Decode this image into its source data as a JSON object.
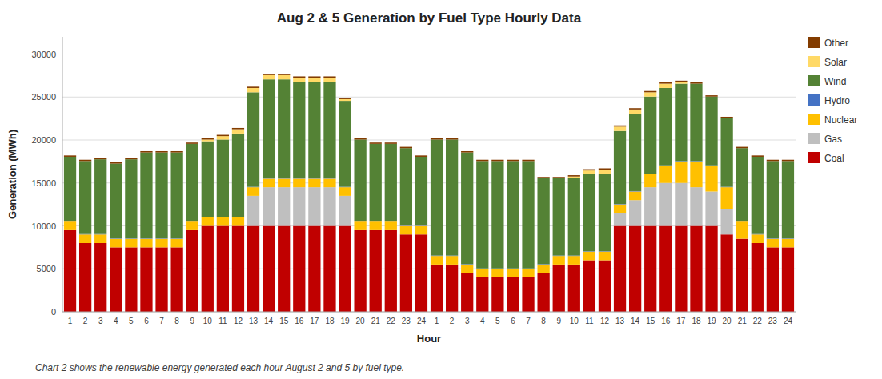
{
  "chart_data": {
    "type": "bar",
    "stacked": true,
    "title": "Aug 2 & 5 Generation by Fuel Type Hourly Data",
    "x_label": "Hour",
    "y_label": "Generation (MWh)",
    "caption": "Chart 2 shows the renewable energy generated each hour August 2 and 5 by fuel type.",
    "categories": [
      "1",
      "2",
      "3",
      "4",
      "5",
      "6",
      "7",
      "8",
      "9",
      "10",
      "11",
      "12",
      "13",
      "14",
      "15",
      "16",
      "17",
      "18",
      "19",
      "20",
      "21",
      "22",
      "23",
      "24",
      "1",
      "2",
      "3",
      "4",
      "5",
      "6",
      "7",
      "8",
      "9",
      "10",
      "11",
      "12",
      "13",
      "14",
      "15",
      "16",
      "17",
      "18",
      "19",
      "20",
      "21",
      "22",
      "23",
      "24"
    ],
    "series": [
      {
        "name": "Coal",
        "color": "#C00000",
        "values": [
          9500,
          8000,
          8000,
          7500,
          7500,
          7500,
          7500,
          7500,
          9500,
          10000,
          10000,
          10000,
          10000,
          10000,
          10000,
          10000,
          10000,
          10000,
          10000,
          9500,
          9500,
          9500,
          9000,
          9000,
          5500,
          5500,
          4500,
          4000,
          4000,
          4000,
          4000,
          4500,
          5500,
          5500,
          6000,
          6000,
          10000,
          10000,
          10000,
          10000,
          10000,
          10000,
          10000,
          9000,
          8500,
          8000,
          7500,
          7500
        ]
      },
      {
        "name": "Gas",
        "color": "#BFBFBF",
        "values": [
          0,
          0,
          0,
          0,
          0,
          0,
          0,
          0,
          0,
          0,
          0,
          0,
          3500,
          4500,
          4500,
          4500,
          4500,
          4500,
          3500,
          0,
          0,
          0,
          0,
          0,
          0,
          0,
          0,
          0,
          0,
          0,
          0,
          0,
          0,
          0,
          0,
          0,
          1500,
          3000,
          4500,
          5000,
          5000,
          4500,
          4000,
          3000,
          0,
          0,
          0,
          0
        ]
      },
      {
        "name": "Nuclear",
        "color": "#FFC000",
        "values": [
          1000,
          1000,
          1000,
          1000,
          1000,
          1000,
          1000,
          1000,
          1000,
          1000,
          1000,
          1000,
          1000,
          1000,
          1000,
          1000,
          1000,
          1000,
          1000,
          1000,
          1000,
          1000,
          1000,
          1000,
          1000,
          1000,
          1000,
          1000,
          1000,
          1000,
          1000,
          1000,
          1000,
          1000,
          1000,
          1000,
          1000,
          1000,
          1500,
          2000,
          2500,
          3000,
          3000,
          2500,
          2000,
          1000,
          1000,
          1000
        ]
      },
      {
        "name": "Hydro",
        "color": "#4472C4",
        "values": [
          50,
          50,
          50,
          50,
          50,
          50,
          50,
          50,
          50,
          50,
          50,
          50,
          50,
          50,
          50,
          50,
          50,
          50,
          50,
          50,
          50,
          50,
          50,
          50,
          50,
          50,
          50,
          50,
          50,
          50,
          50,
          50,
          50,
          50,
          50,
          50,
          50,
          50,
          50,
          50,
          50,
          50,
          50,
          50,
          50,
          50,
          50,
          50
        ]
      },
      {
        "name": "Wind",
        "color": "#548235",
        "values": [
          7500,
          8500,
          8700,
          8700,
          9200,
          10000,
          10000,
          10000,
          9000,
          8800,
          9000,
          9700,
          11000,
          11500,
          11500,
          11200,
          11200,
          11200,
          10000,
          9500,
          9000,
          9000,
          9000,
          8000,
          13500,
          13500,
          13000,
          12500,
          12500,
          12500,
          12500,
          10000,
          9000,
          9000,
          9000,
          9000,
          8500,
          9000,
          9000,
          9000,
          9000,
          9000,
          8000,
          8000,
          8500,
          9000,
          9000,
          9000
        ]
      },
      {
        "name": "Solar",
        "color": "#FFD966",
        "values": [
          0,
          0,
          0,
          0,
          0,
          0,
          0,
          0,
          0,
          200,
          400,
          500,
          500,
          500,
          500,
          500,
          500,
          500,
          200,
          0,
          0,
          0,
          0,
          0,
          0,
          0,
          0,
          0,
          0,
          0,
          0,
          0,
          0,
          200,
          400,
          500,
          500,
          500,
          500,
          500,
          200,
          0,
          0,
          0,
          0,
          0,
          0,
          0
        ]
      },
      {
        "name": "Other",
        "color": "#833C00",
        "values": [
          150,
          150,
          150,
          150,
          150,
          150,
          150,
          150,
          150,
          150,
          150,
          150,
          150,
          150,
          150,
          150,
          150,
          150,
          150,
          150,
          150,
          150,
          150,
          150,
          150,
          150,
          150,
          150,
          150,
          150,
          150,
          150,
          150,
          150,
          150,
          150,
          150,
          150,
          150,
          150,
          150,
          150,
          150,
          150,
          150,
          150,
          150,
          150
        ]
      }
    ],
    "ylim": [
      0,
      32000
    ],
    "yticks": [
      0,
      5000,
      10000,
      15000,
      20000,
      25000,
      30000
    ],
    "grid": true,
    "legend": "right"
  }
}
